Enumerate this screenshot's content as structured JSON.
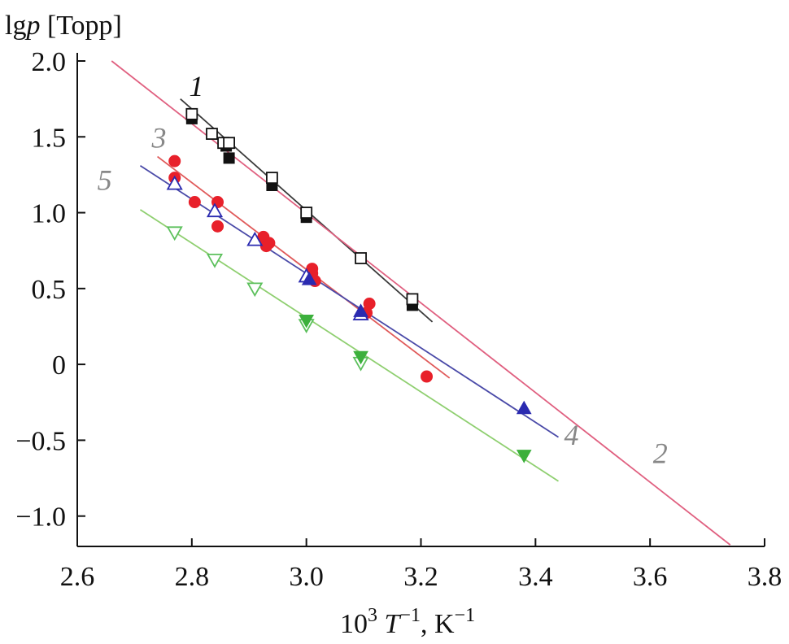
{
  "chart_data": {
    "type": "scatter",
    "ylabel": {
      "prefix": "lg",
      "var": "p",
      "suffix": " [Торр]"
    },
    "xlabel": {
      "prefix": "10",
      "exp1": "3",
      "var": " T",
      "exp2": "−1",
      "suffix": ", K",
      "exp3": "−1"
    },
    "xlim": [
      2.6,
      3.8
    ],
    "ylim": [
      -1.2,
      2.0
    ],
    "x_ticks": [
      2.6,
      2.8,
      3.0,
      3.2,
      3.4,
      3.6,
      3.8
    ],
    "x_tick_labels": [
      "2.6",
      "2.8",
      "3.0",
      "3.2",
      "3.4",
      "3.6",
      "3.8"
    ],
    "y_ticks": [
      2.0,
      1.5,
      1.0,
      0.5,
      0,
      -0.5,
      -1.0
    ],
    "y_tick_labels": [
      "2.0",
      "1.5",
      "1.0",
      "0.5",
      "0",
      "−0.5",
      "−1.0"
    ],
    "grid": false,
    "lines": [
      {
        "label": "1",
        "color": "#3a3a3a",
        "x": [
          2.78,
          3.22
        ],
        "y": [
          1.75,
          0.28
        ]
      },
      {
        "label": "2",
        "color": "#e06080",
        "x": [
          2.66,
          3.74
        ],
        "y": [
          2.0,
          -1.19
        ]
      },
      {
        "label": "3",
        "color": "#e05a5a",
        "x": [
          2.74,
          3.25
        ],
        "y": [
          1.37,
          -0.09
        ]
      },
      {
        "label": "4",
        "color": "#4a4aa8",
        "x": [
          2.71,
          3.44
        ],
        "y": [
          1.31,
          -0.48
        ]
      },
      {
        "label": "5",
        "color": "#8fcf70",
        "x": [
          2.71,
          3.44
        ],
        "y": [
          1.02,
          -0.77
        ]
      }
    ],
    "series": [
      {
        "marker": "square-filled",
        "color": "#111111",
        "points": [
          [
            2.8,
            1.62
          ],
          [
            2.86,
            1.44
          ],
          [
            2.865,
            1.36
          ],
          [
            2.94,
            1.18
          ],
          [
            3.0,
            0.97
          ],
          [
            3.185,
            0.39
          ]
        ]
      },
      {
        "marker": "square-open",
        "color": "#111111",
        "points": [
          [
            2.8,
            1.65
          ],
          [
            2.835,
            1.52
          ],
          [
            2.855,
            1.46
          ],
          [
            2.865,
            1.46
          ],
          [
            2.94,
            1.23
          ],
          [
            3.0,
            1.0
          ],
          [
            3.095,
            0.7
          ],
          [
            3.185,
            0.43
          ]
        ]
      },
      {
        "marker": "circle-filled",
        "color": "#e8202a",
        "points": [
          [
            2.77,
            1.34
          ],
          [
            2.77,
            1.23
          ],
          [
            2.805,
            1.07
          ],
          [
            2.845,
            1.07
          ],
          [
            2.845,
            0.91
          ],
          [
            2.925,
            0.84
          ],
          [
            2.93,
            0.78
          ],
          [
            2.935,
            0.8
          ],
          [
            3.01,
            0.63
          ],
          [
            3.01,
            0.6
          ],
          [
            3.015,
            0.55
          ],
          [
            3.105,
            0.34
          ],
          [
            3.11,
            0.4
          ],
          [
            3.21,
            -0.08
          ]
        ]
      },
      {
        "marker": "triangle-open",
        "color": "#2a2ab0",
        "points": [
          [
            2.77,
            1.19
          ],
          [
            2.84,
            1.01
          ],
          [
            2.91,
            0.82
          ],
          [
            3.0,
            0.58
          ],
          [
            3.095,
            0.33
          ]
        ]
      },
      {
        "marker": "triangle-filled",
        "color": "#2a2ab0",
        "points": [
          [
            3.005,
            0.56
          ],
          [
            3.095,
            0.35
          ],
          [
            3.38,
            -0.29
          ]
        ]
      },
      {
        "marker": "invtriangle-open",
        "color": "#5cc05c",
        "points": [
          [
            2.77,
            0.87
          ],
          [
            2.84,
            0.69
          ],
          [
            2.91,
            0.5
          ],
          [
            3.0,
            0.26
          ],
          [
            3.095,
            0.01
          ]
        ]
      },
      {
        "marker": "invtriangle-filled",
        "color": "#3cb03c",
        "points": [
          [
            3.0,
            0.29
          ],
          [
            3.095,
            0.05
          ],
          [
            3.38,
            -0.6
          ]
        ]
      }
    ],
    "labels": [
      {
        "text": "1",
        "color": "#111111",
        "x": 2.795,
        "y": 1.77
      },
      {
        "text": "3",
        "color": "#888888",
        "x": 2.73,
        "y": 1.43
      },
      {
        "text": "5",
        "color": "#888888",
        "x": 2.635,
        "y": 1.15
      },
      {
        "text": "4",
        "color": "#888888",
        "x": 3.45,
        "y": -0.53
      },
      {
        "text": "2",
        "color": "#888888",
        "x": 3.605,
        "y": -0.65
      }
    ]
  }
}
